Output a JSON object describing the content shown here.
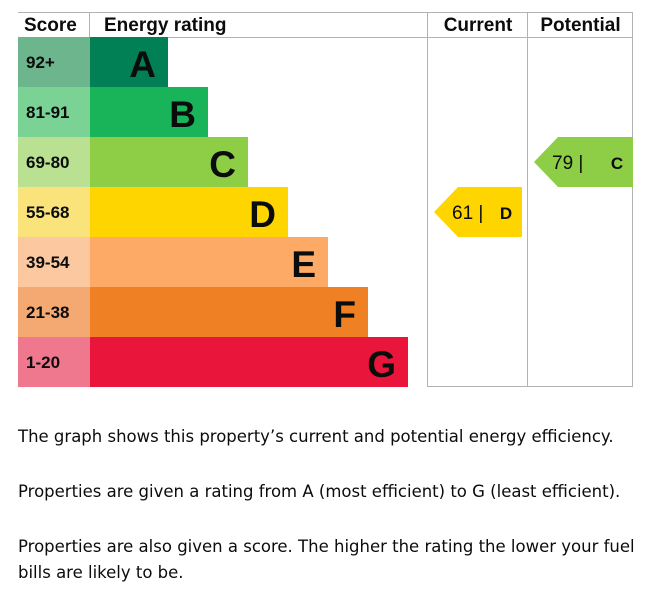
{
  "chart_data": {
    "type": "bar",
    "title": "",
    "headers": {
      "score": "Score",
      "rating": "Energy rating",
      "current": "Current",
      "potential": "Potential"
    },
    "bands": [
      {
        "letter": "A",
        "range": "92+",
        "bar_color": "#008054",
        "score_color": "#6db58d"
      },
      {
        "letter": "B",
        "range": "81-91",
        "bar_color": "#19b459",
        "score_color": "#7bd295"
      },
      {
        "letter": "C",
        "range": "69-80",
        "bar_color": "#8dce46",
        "score_color": "#b9e191"
      },
      {
        "letter": "D",
        "range": "55-68",
        "bar_color": "#ffd500",
        "score_color": "#fbe37c"
      },
      {
        "letter": "E",
        "range": "39-54",
        "bar_color": "#fcaa65",
        "score_color": "#fcc8a0"
      },
      {
        "letter": "F",
        "range": "21-38",
        "bar_color": "#ef8023",
        "score_color": "#f5a972"
      },
      {
        "letter": "G",
        "range": "1-20",
        "bar_color": "#e9153b",
        "score_color": "#f0788e"
      }
    ],
    "current": {
      "score": 61,
      "label": "61 |",
      "letter": "D",
      "color": "#ffd500"
    },
    "potential": {
      "score": 79,
      "label": "79 |",
      "letter": "C",
      "color": "#8dce46"
    }
  },
  "text": {
    "para1": "The graph shows this property’s current and potential energy efficiency.",
    "para2": "Properties are given a rating from A (most efficient) to G (least efficient).",
    "para3": "Properties are also given a score. The higher the rating the lower your fuel bills are likely to be."
  }
}
